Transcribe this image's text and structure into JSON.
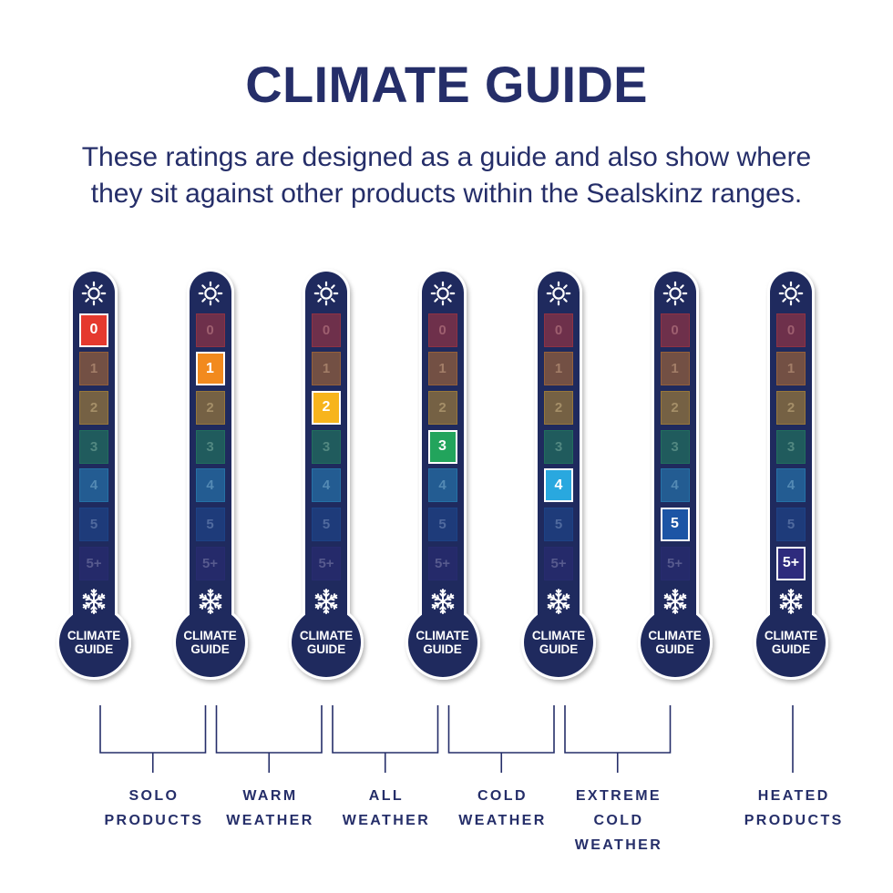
{
  "title": "CLIMATE GUIDE",
  "subtitle_lines": [
    "These ratings are designed as a guide and also show where",
    "they sit against other products within the Sealskinz ranges."
  ],
  "colors": {
    "navy": "#1f2a5e",
    "text": "#252e69",
    "background": "#ffffff"
  },
  "scale": {
    "labels": [
      "0",
      "1",
      "2",
      "3",
      "4",
      "5",
      "5+"
    ],
    "colors": [
      "#e5392e",
      "#f28a1e",
      "#f7b41c",
      "#22a45c",
      "#29a8df",
      "#1c55a5",
      "#2e2b7d"
    ]
  },
  "icons": {
    "top": "sun-icon",
    "bottom": "snowflake-icon"
  },
  "bulb_label": {
    "line1": "CLIMATE",
    "line2": "GUIDE"
  },
  "thermometers": [
    {
      "rating": "0"
    },
    {
      "rating": "1"
    },
    {
      "rating": "2"
    },
    {
      "rating": "3"
    },
    {
      "rating": "4"
    },
    {
      "rating": "5"
    },
    {
      "rating": "5+"
    }
  ],
  "categories": [
    {
      "lines": [
        "SOLO",
        "PRODUCTS"
      ],
      "thermometers": [
        0,
        1
      ]
    },
    {
      "lines": [
        "WARM",
        "WEATHER"
      ],
      "thermometers": [
        1,
        2
      ]
    },
    {
      "lines": [
        "ALL",
        "WEATHER"
      ],
      "thermometers": [
        2,
        3
      ]
    },
    {
      "lines": [
        "COLD",
        "WEATHER"
      ],
      "thermometers": [
        3,
        4
      ]
    },
    {
      "lines": [
        "EXTREME",
        "COLD",
        "WEATHER"
      ],
      "thermometers": [
        4,
        5
      ]
    },
    {
      "lines": [
        "HEATED",
        "PRODUCTS"
      ],
      "thermometers": [
        6
      ]
    }
  ]
}
